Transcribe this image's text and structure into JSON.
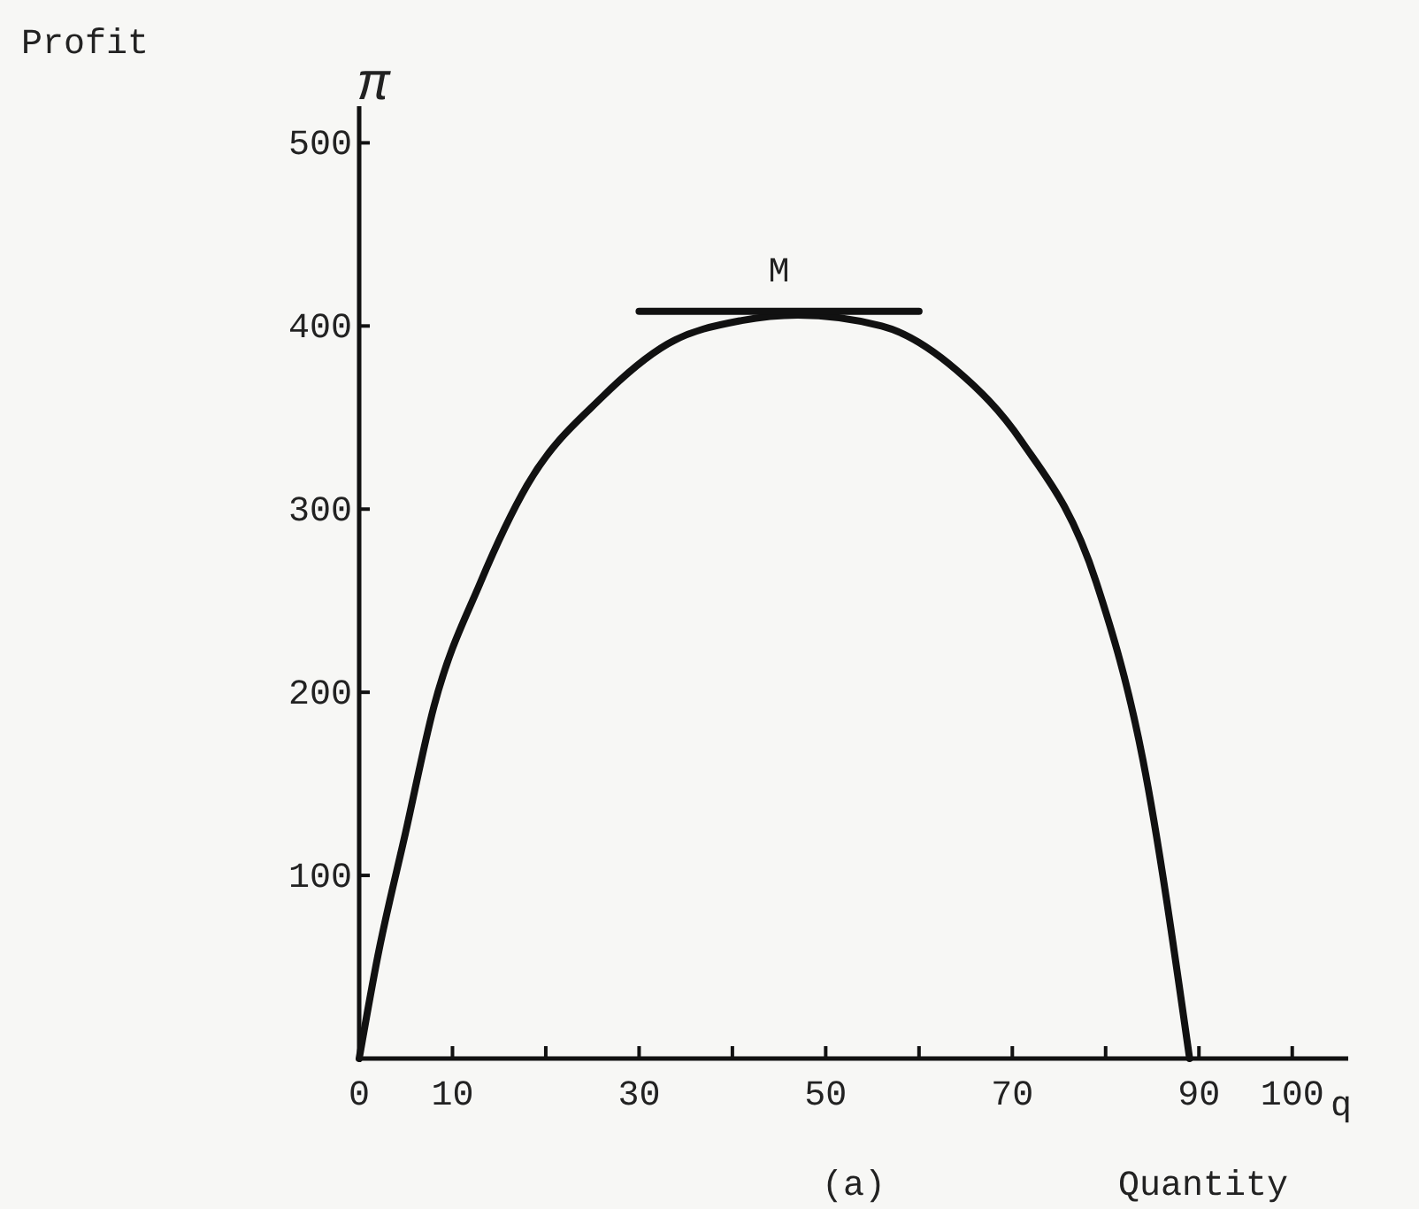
{
  "chart_data": {
    "type": "line",
    "xlabel": "q",
    "ylabel": "π",
    "annotations": [
      "Profit",
      "Quantity",
      "(a)",
      {
        "text": "M",
        "x": 45,
        "y": 405
      }
    ],
    "series": [
      {
        "color": "#111111",
        "x": [
          0,
          2,
          5,
          8,
          13,
          18,
          26,
          33,
          41,
          47,
          56,
          64,
          71,
          79,
          84,
          89
        ],
        "values": [
          0,
          56,
          124,
          192,
          260,
          313,
          361,
          390,
          403,
          406,
          400,
          376,
          337,
          260,
          163,
          0
        ]
      },
      {
        "color": "#111111",
        "x": [
          30,
          60
        ],
        "values": [
          408,
          408
        ]
      }
    ],
    "xlim": [
      0,
      106
    ],
    "xticks": [
      0,
      10,
      {
        "value": 20,
        "label": null
      },
      30,
      {
        "value": 40,
        "label": null
      },
      50,
      {
        "value": 60,
        "label": null
      },
      70,
      {
        "value": 80,
        "label": null
      },
      90,
      100
    ],
    "ylim": [
      0,
      520
    ],
    "yticks": [
      {
        "value": 0,
        "label": null
      },
      100,
      200,
      300,
      400,
      500
    ],
    "grid": false,
    "marker": "none",
    "line_style": "solid"
  }
}
